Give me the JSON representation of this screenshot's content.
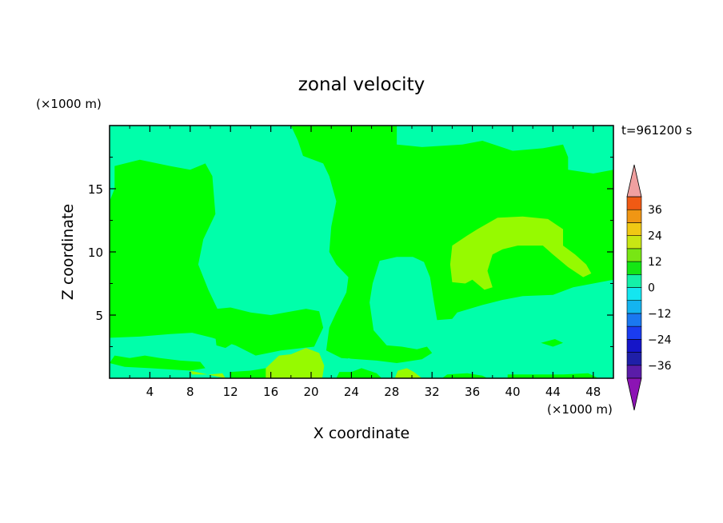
{
  "chart_data": {
    "type": "heatmap",
    "title": "zonal velocity",
    "xlabel": "X coordinate",
    "ylabel": "Z coordinate",
    "x_unit_label": "(×1000 m)",
    "y_unit_label": "(×1000 m)",
    "time_label": "t=961200 s",
    "xlim": [
      0,
      50
    ],
    "ylim": [
      0,
      20
    ],
    "x_ticks": [
      4,
      8,
      12,
      16,
      20,
      24,
      28,
      32,
      36,
      40,
      44,
      48
    ],
    "y_ticks": [
      5,
      10,
      15
    ],
    "colorbar": {
      "tick_labels": [
        "36",
        "24",
        "12",
        "0",
        "−12",
        "−24",
        "−36"
      ],
      "tick_values": [
        36,
        24,
        12,
        0,
        -12,
        -24,
        -36
      ],
      "levels": [
        -42,
        -36,
        -30,
        -24,
        -18,
        -12,
        -6,
        0,
        6,
        12,
        18,
        24,
        30,
        36,
        42
      ],
      "colors": [
        "#5a1ca8",
        "#1f1fa8",
        "#1515c8",
        "#1a3cf0",
        "#1a78f0",
        "#14b4f0",
        "#14e6f0",
        "#14f0a8",
        "#14e614",
        "#78e614",
        "#c8e614",
        "#f0c814",
        "#f09614",
        "#f05a14",
        "#f01e1e",
        "#e6283c"
      ],
      "over_color": "#f0a0a0",
      "under_color": "#8c14b4"
    },
    "regions": [
      {
        "color": "#00ff00",
        "points": [
          [
            0.5,
            16.8
          ],
          [
            3,
            17.3
          ],
          [
            6,
            16.8
          ],
          [
            8,
            16.5
          ],
          [
            9.5,
            17
          ],
          [
            10.2,
            16
          ],
          [
            10.5,
            13
          ],
          [
            9.3,
            11
          ],
          [
            8.8,
            9
          ],
          [
            9.8,
            7
          ],
          [
            10.7,
            5.5
          ],
          [
            12,
            5.6
          ],
          [
            14,
            5.2
          ],
          [
            16,
            5
          ],
          [
            19.5,
            5.5
          ],
          [
            20.8,
            5.3
          ],
          [
            21.2,
            4
          ],
          [
            20.3,
            2.5
          ],
          [
            17,
            2.2
          ],
          [
            14.5,
            1.8
          ],
          [
            12.5,
            2.6
          ],
          [
            10.2,
            3.2
          ],
          [
            8.2,
            3.6
          ],
          [
            6,
            3.5
          ],
          [
            3,
            3.3
          ],
          [
            0,
            3.2
          ],
          [
            0,
            14
          ],
          [
            0.5,
            15
          ]
        ]
      },
      {
        "color": "#00ff00",
        "points": [
          [
            18,
            20
          ],
          [
            28.5,
            20
          ],
          [
            28.5,
            18.5
          ],
          [
            31,
            18.3
          ],
          [
            35,
            18.5
          ],
          [
            37,
            18.8
          ],
          [
            40,
            18
          ],
          [
            43,
            18.2
          ],
          [
            45,
            18.5
          ],
          [
            45.5,
            17.5
          ],
          [
            45.5,
            16.5
          ],
          [
            48,
            16.2
          ],
          [
            50,
            16.5
          ],
          [
            50,
            7.8
          ],
          [
            48,
            7.5
          ],
          [
            46,
            7.2
          ],
          [
            44,
            6.6
          ],
          [
            41,
            6.5
          ],
          [
            39,
            6.2
          ],
          [
            37,
            5.8
          ],
          [
            34.5,
            5.2
          ],
          [
            34,
            4.7
          ],
          [
            32.5,
            4.6
          ],
          [
            32.2,
            6
          ],
          [
            31.8,
            8
          ],
          [
            31.2,
            9.2
          ],
          [
            30.1,
            9.6
          ],
          [
            28.5,
            9.6
          ],
          [
            26.8,
            9.3
          ],
          [
            26.1,
            7.5
          ],
          [
            25.8,
            6
          ],
          [
            26.2,
            3.8
          ],
          [
            27.5,
            2.6
          ],
          [
            29,
            2.5
          ],
          [
            30.5,
            2.3
          ],
          [
            31.5,
            2.5
          ],
          [
            32,
            2
          ],
          [
            31,
            1.5
          ],
          [
            28.5,
            1.2
          ],
          [
            26.5,
            1.4
          ],
          [
            23,
            1.6
          ],
          [
            21.5,
            2.2
          ],
          [
            21.8,
            4
          ],
          [
            22.5,
            5.2
          ],
          [
            23.5,
            6.8
          ],
          [
            23.7,
            8
          ],
          [
            22.5,
            9
          ],
          [
            21.8,
            10
          ],
          [
            22,
            12
          ],
          [
            22.5,
            14
          ],
          [
            21.8,
            16
          ],
          [
            21.2,
            17
          ],
          [
            19.2,
            17.6
          ],
          [
            18.7,
            18.8
          ]
        ]
      },
      {
        "color": "#00ff00",
        "points": [
          [
            10.5,
            3.3
          ],
          [
            11.7,
            3.6
          ],
          [
            12.3,
            2.8
          ],
          [
            11.5,
            2.4
          ],
          [
            10.6,
            2.6
          ]
        ]
      },
      {
        "color": "#00ff00",
        "points": [
          [
            0,
            1.2
          ],
          [
            0.5,
            1.8
          ],
          [
            2,
            1.6
          ],
          [
            3.5,
            1.8
          ],
          [
            5,
            1.6
          ],
          [
            7,
            1.4
          ],
          [
            9,
            1.3
          ],
          [
            9.5,
            0.8
          ],
          [
            8,
            0.6
          ],
          [
            4,
            0.8
          ],
          [
            1.5,
            0.9
          ]
        ]
      },
      {
        "color": "#00ff00",
        "points": [
          [
            12,
            0
          ],
          [
            12,
            0.5
          ],
          [
            14,
            0.6
          ],
          [
            15.5,
            0.8
          ],
          [
            17.5,
            0.4
          ],
          [
            17,
            0
          ]
        ]
      },
      {
        "color": "#00ff00",
        "points": [
          [
            22.5,
            0
          ],
          [
            22.8,
            0.5
          ],
          [
            24,
            0.5
          ],
          [
            25,
            0.8
          ],
          [
            26.5,
            0.4
          ],
          [
            27,
            0
          ]
        ]
      },
      {
        "color": "#00ff00",
        "points": [
          [
            33,
            0
          ],
          [
            33.5,
            0.3
          ],
          [
            35.5,
            0.4
          ],
          [
            37,
            0.2
          ],
          [
            37.5,
            0
          ]
        ]
      },
      {
        "color": "#00ff00",
        "points": [
          [
            39.5,
            0
          ],
          [
            39.5,
            0.3
          ],
          [
            43,
            0.3
          ],
          [
            45,
            0.3
          ],
          [
            47.5,
            0.4
          ],
          [
            48.5,
            0
          ]
        ]
      },
      {
        "color": "#00ff00",
        "points": [
          [
            42.8,
            2.8
          ],
          [
            44.2,
            3.1
          ],
          [
            45,
            2.8
          ],
          [
            44,
            2.5
          ]
        ]
      },
      {
        "color": "#96fa00",
        "points": [
          [
            34,
            10.5
          ],
          [
            35.5,
            11.3
          ],
          [
            36.5,
            11.8
          ],
          [
            38.5,
            12.7
          ],
          [
            41,
            12.8
          ],
          [
            43.5,
            12.6
          ],
          [
            45,
            11.8
          ],
          [
            45,
            10.5
          ],
          [
            46.2,
            9.8
          ],
          [
            47.3,
            9
          ],
          [
            47.8,
            8.3
          ],
          [
            47,
            8
          ],
          [
            45.5,
            8.8
          ],
          [
            44,
            9.8
          ],
          [
            43,
            10.5
          ],
          [
            40.5,
            10.5
          ],
          [
            39,
            10.2
          ],
          [
            38,
            9.8
          ],
          [
            37.5,
            8.5
          ],
          [
            38,
            7.2
          ],
          [
            37.2,
            7
          ],
          [
            36,
            7.8
          ],
          [
            35.3,
            7.5
          ],
          [
            34,
            7.6
          ],
          [
            33.8,
            9
          ]
        ]
      },
      {
        "color": "#96fa00",
        "points": [
          [
            15.5,
            0
          ],
          [
            15.5,
            0.8
          ],
          [
            16.8,
            1.8
          ],
          [
            18,
            1.9
          ],
          [
            19.5,
            2.4
          ],
          [
            20.8,
            2
          ],
          [
            21.3,
            1
          ],
          [
            21.1,
            0
          ]
        ]
      },
      {
        "color": "#96fa00",
        "points": [
          [
            8,
            0.6
          ],
          [
            8.2,
            0.3
          ],
          [
            10,
            0.3
          ],
          [
            11.2,
            0.4
          ],
          [
            11.5,
            0
          ]
        ]
      },
      {
        "color": "#96fa00",
        "points": [
          [
            28.3,
            0
          ],
          [
            28.6,
            0.6
          ],
          [
            29.5,
            0.8
          ],
          [
            30.2,
            0.5
          ],
          [
            31,
            0
          ]
        ]
      },
      {
        "color": "#00ffaa",
        "points": [
          [
            16.3,
            7.5
          ],
          [
            16.7,
            8.5
          ],
          [
            18.2,
            9.2
          ],
          [
            19,
            9
          ],
          [
            19.6,
            8
          ],
          [
            19.5,
            6.8
          ],
          [
            18,
            6.5
          ],
          [
            17,
            6.7
          ]
        ]
      },
      {
        "color": "#00ffaa",
        "points": [
          [
            0,
            0
          ],
          [
            0,
            0.5
          ],
          [
            0.8,
            0.8
          ],
          [
            1.5,
            0.4
          ],
          [
            1.8,
            0
          ]
        ]
      },
      {
        "color": "#00ffaa",
        "points": [
          [
            23.5,
            1.3
          ],
          [
            23.7,
            1.6
          ],
          [
            24.1,
            1.5
          ],
          [
            24,
            1.1
          ]
        ]
      },
      {
        "color": "#00ffaa",
        "points": [
          [
            34.2,
            0.8
          ],
          [
            35.5,
            0.9
          ],
          [
            35.8,
            0.6
          ],
          [
            34.5,
            0.4
          ]
        ]
      }
    ]
  }
}
